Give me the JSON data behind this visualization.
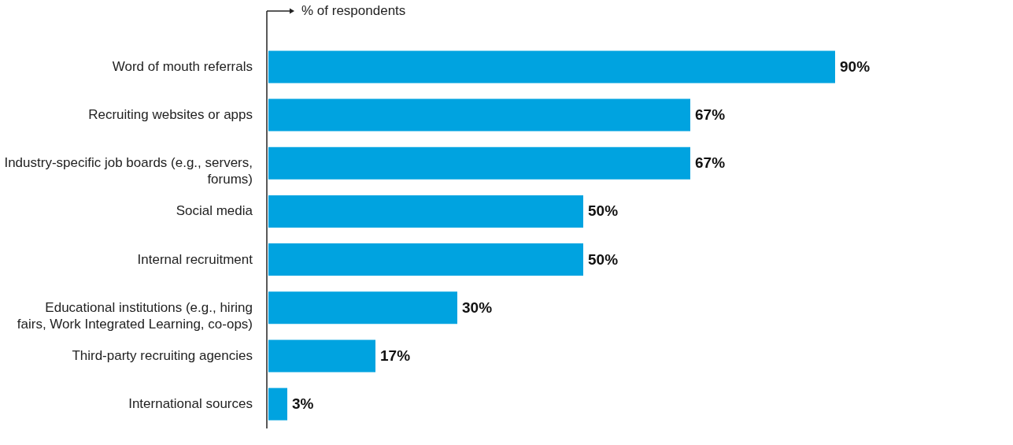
{
  "chart_data": {
    "type": "bar",
    "orientation": "horizontal",
    "xlabel": "% of respondents",
    "categories": [
      "Word of mouth referrals",
      "Recruiting websites or apps",
      "Industry-specific job boards (e.g., servers, forums)",
      "Social media",
      "Internal recruitment",
      "Educational institutions (e.g., hiring fairs, Work Integrated Learning, co-ops)",
      "Third-party recruiting agencies",
      "International sources"
    ],
    "values": [
      90,
      67,
      67,
      50,
      50,
      30,
      17,
      3
    ],
    "value_labels": [
      "90%",
      "67%",
      "67%",
      "50%",
      "50%",
      "30%",
      "17%",
      "3%"
    ],
    "color": "#00a3e0"
  }
}
